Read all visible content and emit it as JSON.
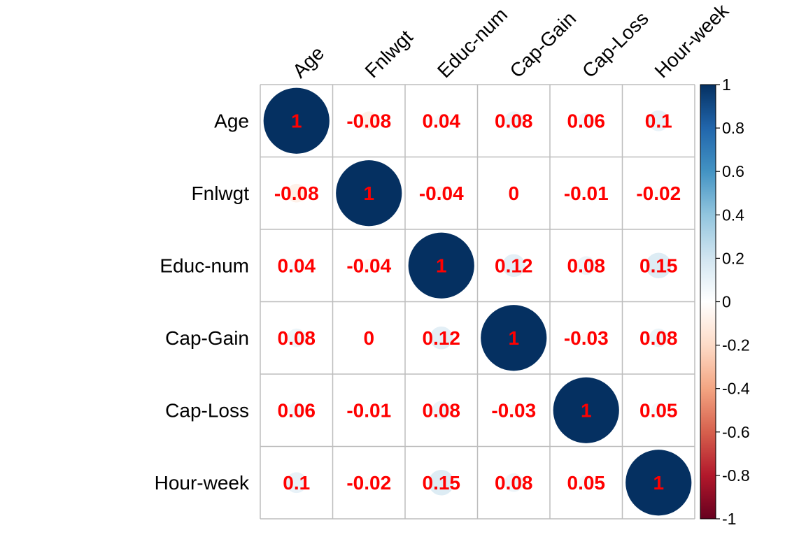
{
  "chart_data": {
    "type": "heatmap",
    "variables": [
      "Age",
      "Fnlwgt",
      "Educ-num",
      "Cap-Gain",
      "Cap-Loss",
      "Hour-week"
    ],
    "matrix": [
      [
        1,
        -0.08,
        0.04,
        0.08,
        0.06,
        0.1
      ],
      [
        -0.08,
        1,
        -0.04,
        0,
        -0.01,
        -0.02
      ],
      [
        0.04,
        -0.04,
        1,
        0.12,
        0.08,
        0.15
      ],
      [
        0.08,
        0,
        0.12,
        1,
        -0.03,
        0.08
      ],
      [
        0.06,
        -0.01,
        0.08,
        -0.03,
        1,
        0.05
      ],
      [
        0.1,
        -0.02,
        0.15,
        0.08,
        0.05,
        1
      ]
    ],
    "value_labels": [
      [
        "1",
        "-0.08",
        "0.04",
        "0.08",
        "0.06",
        "0.1"
      ],
      [
        "-0.08",
        "1",
        "-0.04",
        "0",
        "-0.01",
        "-0.02"
      ],
      [
        "0.04",
        "-0.04",
        "1",
        "0.12",
        "0.08",
        "0.15"
      ],
      [
        "0.08",
        "0",
        "0.12",
        "1",
        "-0.03",
        "0.08"
      ],
      [
        "0.06",
        "-0.01",
        "0.08",
        "-0.03",
        "1",
        "0.05"
      ],
      [
        "0.1",
        "-0.02",
        "0.15",
        "0.08",
        "0.05",
        "1"
      ]
    ],
    "glyph": "circle",
    "color_scale": {
      "range": [
        -1,
        1
      ],
      "ticks": [
        1,
        0.8,
        0.6,
        0.4,
        0.2,
        0,
        -0.2,
        -0.4,
        -0.6,
        -0.8,
        -1
      ],
      "tick_labels": [
        "1",
        "0.8",
        "0.6",
        "0.4",
        "0.2",
        "0",
        "-0.2",
        "-0.4",
        "-0.6",
        "-0.8",
        "-1"
      ],
      "colors": [
        "#67001F",
        "#B2182B",
        "#D6604D",
        "#F4A582",
        "#FDDBC7",
        "#FFFFFF",
        "#D1E5F0",
        "#92C5DE",
        "#4393C3",
        "#2166AC",
        "#053061"
      ]
    },
    "legend_placement": "right",
    "grid": true,
    "value_label_color": "#FF0000"
  }
}
